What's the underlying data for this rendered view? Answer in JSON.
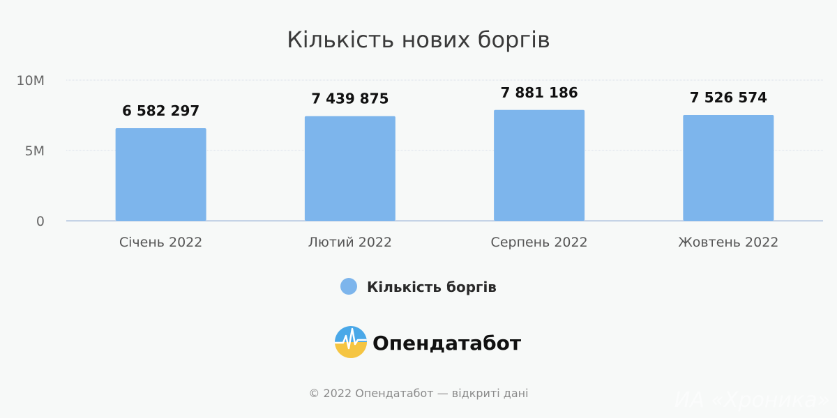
{
  "chart_data": {
    "type": "bar",
    "title": "Кількість нових боргів",
    "categories": [
      "Січень 2022",
      "Лютий 2022",
      "Серпень 2022",
      "Жовтень 2022"
    ],
    "series": [
      {
        "name": "Кількість боргів",
        "values": [
          6582297,
          7439875,
          7881186,
          7526574
        ],
        "labels": [
          "6 582 297",
          "7 439 875",
          "7 881 186",
          "7 526 574"
        ],
        "color": "#7db5ec"
      }
    ],
    "yticks": [
      {
        "value": 0,
        "label": "0"
      },
      {
        "value": 5000000,
        "label": "5M"
      },
      {
        "value": 10000000,
        "label": "10M"
      }
    ],
    "ylim": [
      0,
      10000000
    ],
    "xlabel": "",
    "ylabel": "",
    "grid": true,
    "legend_position": "bottom"
  },
  "brand": {
    "name": "Опендатабот",
    "logo_colors": [
      "#f5c542",
      "#4aa8e8"
    ]
  },
  "footer": {
    "copyright": "© 2022 Опендатабот — відкриті дані",
    "watermark": "ИА «Хроника»"
  }
}
